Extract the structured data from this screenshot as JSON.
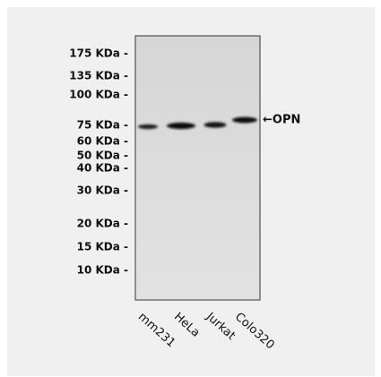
{
  "markers": [
    "175 KDa -",
    "135 KDa -",
    "100 KDa -",
    "75 KDa -",
    "60 KDa -",
    "50 KDa -",
    "40 KDa -",
    "30 KDa -",
    "20 KDa -",
    "15 KDa -",
    "10 KDa -"
  ],
  "band_label": "←OPN",
  "lanes": [
    "mm231",
    "HeLa",
    "Jurkat",
    "Colo320"
  ]
}
